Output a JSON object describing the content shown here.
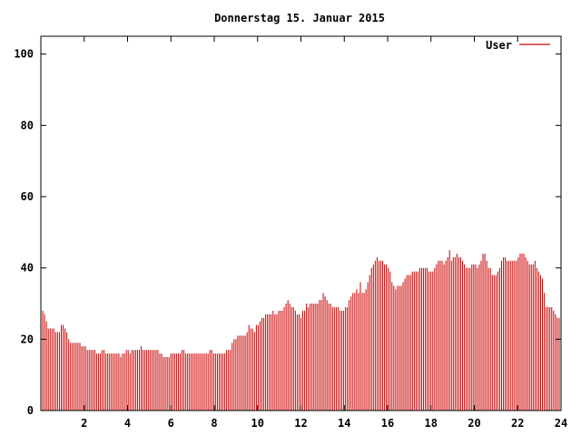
{
  "chart_data": {
    "type": "bar",
    "title": "Donnerstag 15. Januar 2015",
    "legend": {
      "label": "User",
      "placement": "top-right",
      "color": "#cc0000"
    },
    "xlim": [
      0,
      24
    ],
    "ylim": [
      0,
      105
    ],
    "x_ticks": [
      "2",
      "4",
      "6",
      "8",
      "10",
      "12",
      "14",
      "16",
      "18",
      "20",
      "22",
      "24"
    ],
    "y_ticks": [
      "0",
      "20",
      "40",
      "60",
      "80",
      "100"
    ],
    "grid": false,
    "bar_color": "#cc0000",
    "sample_interval_hours": 0.0833,
    "series": [
      {
        "name": "User",
        "values": [
          29,
          28,
          27,
          25,
          23,
          23,
          23,
          23,
          22,
          22,
          22,
          24,
          24,
          23,
          22,
          20,
          19,
          19,
          19,
          19,
          19,
          19,
          18,
          18,
          18,
          17,
          17,
          17,
          17,
          17,
          16,
          16,
          16,
          17,
          17,
          16,
          16,
          16,
          16,
          16,
          16,
          16,
          16,
          15,
          16,
          16,
          17,
          17,
          16,
          17,
          17,
          17,
          17,
          17,
          18,
          17,
          17,
          17,
          17,
          17,
          17,
          17,
          17,
          17,
          16,
          16,
          15,
          15,
          15,
          15,
          16,
          16,
          16,
          16,
          16,
          16,
          17,
          17,
          16,
          16,
          16,
          16,
          16,
          16,
          16,
          16,
          16,
          16,
          16,
          16,
          16,
          17,
          17,
          16,
          16,
          16,
          16,
          16,
          16,
          16,
          17,
          17,
          17,
          19,
          20,
          20,
          21,
          21,
          21,
          21,
          21,
          22,
          24,
          23,
          23,
          22,
          24,
          24,
          25,
          26,
          26,
          27,
          27,
          27,
          27,
          28,
          27,
          27,
          28,
          28,
          28,
          29,
          30,
          31,
          30,
          29,
          29,
          28,
          27,
          27,
          26,
          28,
          28,
          30,
          29,
          30,
          30,
          30,
          30,
          30,
          31,
          31,
          33,
          32,
          31,
          30,
          30,
          29,
          29,
          29,
          29,
          28,
          28,
          28,
          29,
          29,
          31,
          32,
          33,
          33,
          34,
          33,
          36,
          33,
          33,
          34,
          36,
          38,
          40,
          41,
          42,
          43,
          42,
          42,
          42,
          41,
          41,
          40,
          39,
          36,
          35,
          34,
          35,
          35,
          35,
          36,
          37,
          38,
          38,
          38,
          39,
          39,
          39,
          39,
          40,
          40,
          40,
          40,
          40,
          39,
          39,
          39,
          40,
          41,
          42,
          42,
          42,
          41,
          42,
          43,
          45,
          42,
          43,
          43,
          44,
          43,
          43,
          42,
          41,
          40,
          40,
          40,
          41,
          41,
          41,
          40,
          41,
          42,
          44,
          44,
          42,
          40,
          40,
          38,
          38,
          38,
          39,
          40,
          42,
          43,
          43,
          42,
          42,
          42,
          42,
          42,
          42,
          43,
          44,
          44,
          44,
          43,
          42,
          41,
          41,
          41,
          42,
          40,
          39,
          38,
          37,
          33,
          29,
          29,
          29,
          29,
          28,
          27,
          26,
          26,
          25
        ]
      }
    ]
  }
}
